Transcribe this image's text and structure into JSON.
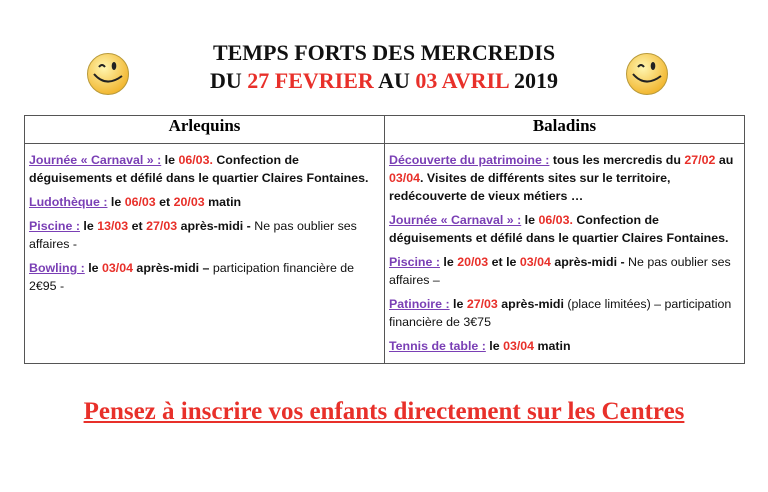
{
  "title": {
    "line1": "TEMPS FORTS DES MERCREDIS",
    "line2_prefix": "DU ",
    "line2_date1": "27 FEVRIER",
    "line2_mid": " AU ",
    "line2_date2": "03 AVRIL",
    "line2_suffix": " 2019"
  },
  "icons": {
    "left": "winking-smiley-icon",
    "right": "winking-smiley-icon"
  },
  "colors": {
    "accent_red": "#e8302a",
    "label_purple": "#7a3fb5"
  },
  "table": {
    "columns": [
      {
        "header": "Arlequins",
        "paragraphs": [
          [
            {
              "t": "Journée « Carnaval » :",
              "s": "label"
            },
            {
              "t": " le ",
              "s": "bold"
            },
            {
              "t": "06/03.",
              "s": "date"
            },
            {
              "t": " Confection de déguisements et défilé dans le quartier Claires Fontaines.",
              "s": "bold"
            }
          ],
          [
            {
              "t": "Ludothèque :",
              "s": "label"
            },
            {
              "t": " le ",
              "s": "bold"
            },
            {
              "t": "06/03",
              "s": "date"
            },
            {
              "t": " et ",
              "s": "bold"
            },
            {
              "t": "20/03",
              "s": "date"
            },
            {
              "t": " matin",
              "s": "bold"
            }
          ],
          [
            {
              "t": "Piscine :",
              "s": "label"
            },
            {
              "t": " le ",
              "s": "bold"
            },
            {
              "t": "13/03",
              "s": "date"
            },
            {
              "t": " et ",
              "s": "bold"
            },
            {
              "t": "27/03",
              "s": "date"
            },
            {
              "t": " après-midi -",
              "s": "bold"
            },
            {
              "t": " Ne pas oublier ses affaires -",
              "s": "normal"
            }
          ],
          [
            {
              "t": "Bowling :",
              "s": "label"
            },
            {
              "t": " le ",
              "s": "bold"
            },
            {
              "t": "03/04",
              "s": "date"
            },
            {
              "t": " après-midi –",
              "s": "bold"
            },
            {
              "t": " participation financière de 2€95 -",
              "s": "normal"
            }
          ]
        ]
      },
      {
        "header": "Baladins",
        "paragraphs": [
          [
            {
              "t": "Découverte du patrimoine :",
              "s": "label"
            },
            {
              "t": " tous les mercredis du ",
              "s": "bold"
            },
            {
              "t": "27/02",
              "s": "date"
            },
            {
              "t": " au ",
              "s": "bold"
            },
            {
              "t": "03/04",
              "s": "date"
            },
            {
              "t": ". Visites de différents sites sur le territoire, redécouverte de vieux métiers …",
              "s": "bold"
            }
          ],
          [
            {
              "t": "Journée « Carnaval » :",
              "s": "label"
            },
            {
              "t": " le ",
              "s": "bold"
            },
            {
              "t": "06/03.",
              "s": "date"
            },
            {
              "t": " Confection de déguisements et défilé dans le quartier Claires Fontaines.",
              "s": "bold"
            }
          ],
          [
            {
              "t": "Piscine :",
              "s": "label"
            },
            {
              "t": " le ",
              "s": "bold"
            },
            {
              "t": "20/03",
              "s": "date"
            },
            {
              "t": " et le ",
              "s": "bold"
            },
            {
              "t": "03/04",
              "s": "date"
            },
            {
              "t": " après-midi -",
              "s": "bold"
            },
            {
              "t": " Ne pas oublier ses affaires –",
              "s": "normal"
            }
          ],
          [
            {
              "t": "Patinoire :",
              "s": "label"
            },
            {
              "t": " le ",
              "s": "bold"
            },
            {
              "t": "27/03",
              "s": "date"
            },
            {
              "t": " après-midi",
              "s": "bold"
            },
            {
              "t": " (place limitées) – participation financière de 3€75",
              "s": "normal"
            }
          ],
          [
            {
              "t": "Tennis de table :",
              "s": "label"
            },
            {
              "t": " le ",
              "s": "bold"
            },
            {
              "t": "03/04",
              "s": "date"
            },
            {
              "t": " matin",
              "s": "bold"
            }
          ]
        ]
      }
    ]
  },
  "footer": "Pensez à inscrire vos enfants directement sur les Centres"
}
